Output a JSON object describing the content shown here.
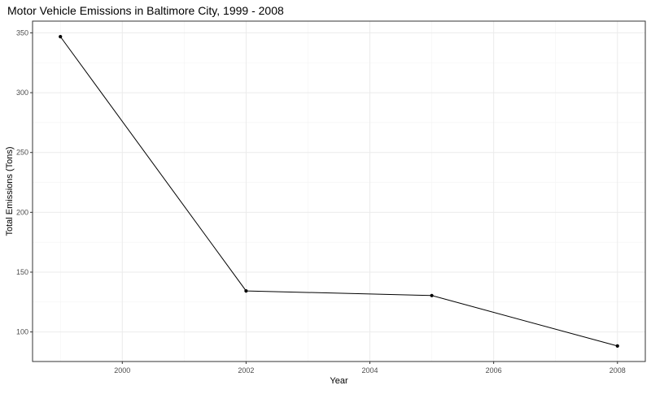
{
  "chart_data": {
    "type": "line",
    "title": "Motor Vehicle Emissions in Baltimore City, 1999 - 2008",
    "xlabel": "Year",
    "ylabel": "Total Emissions (Tons)",
    "x": [
      1999,
      2002,
      2005,
      2008
    ],
    "series": [
      {
        "values": [
          346.82,
          134.31,
          130.43,
          88.28
        ]
      }
    ],
    "xlim": [
      1998.55,
      2008.45
    ],
    "ylim": [
      75.3,
      359.8
    ],
    "x_ticks": [
      2000,
      2002,
      2004,
      2006,
      2008
    ],
    "x_tick_labels": [
      "2000",
      "2002",
      "2004",
      "2006",
      "2008"
    ],
    "y_ticks": [
      100,
      150,
      200,
      250,
      300,
      350
    ],
    "y_tick_labels": [
      "100",
      "150",
      "200",
      "250",
      "300",
      "350"
    ],
    "grid": true,
    "line_color": "#000000",
    "grid_color": "#ebebeb"
  }
}
